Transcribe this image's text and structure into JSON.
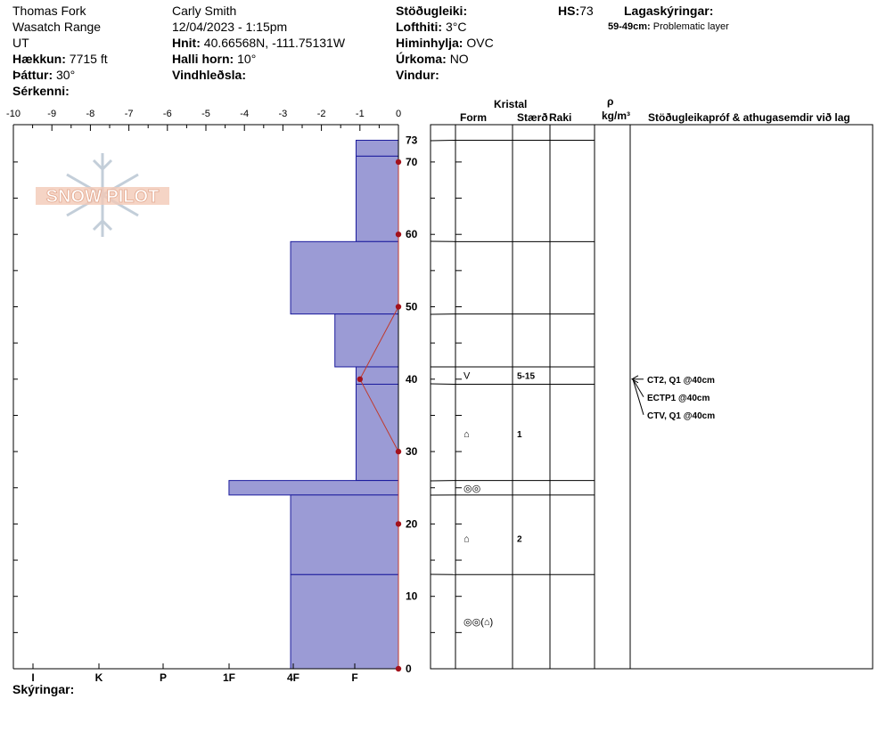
{
  "header": {
    "location": "Thomas Fork",
    "range": "Wasatch Range",
    "state": "UT",
    "elevation_label": "Hækkun:",
    "elevation": "7715 ft",
    "aspect_label": "Þáttur:",
    "aspect": "30°",
    "features_label": "Sérkenni:",
    "features": "",
    "observer": "Carly Smith",
    "datetime": "12/04/2023 - 1:15pm",
    "coords_label": "Hnit:",
    "coords": "40.66568N, -111.75131W",
    "slope_label": "Halli horn:",
    "slope": "10°",
    "wind_loading_label": "Vindhleðsla:",
    "wind_loading": "",
    "stability_label": "Stöðugleiki:",
    "stability": "",
    "airtemp_label": "Lofthiti:",
    "airtemp": "3°C",
    "sky_label": "Himinhylja:",
    "sky": "OVC",
    "precip_label": "Úrkoma:",
    "precip": "NO",
    "wind_label": "Vindur:",
    "wind": "",
    "hs_label": "HS:",
    "hs": "73",
    "layer_notes_label": "Lagaskýringar:",
    "layer_note_range": "59-49cm:",
    "layer_note_text": "Problematic layer"
  },
  "footer": {
    "notes_label": "Skýringar:"
  },
  "columns": {
    "crystal": "Kristal",
    "form": "Form",
    "size": "Stærð",
    "moisture": "Raki",
    "rho": "ρ",
    "density_unit": "kg/m³",
    "tests": "Stöðugleikapróf & athugasemdir við lag"
  },
  "watermark": "SNOW PILOT",
  "chart_data": {
    "type": "snow-profile",
    "temp_axis": {
      "ticks": [
        -10,
        -9,
        -8,
        -7,
        -6,
        -5,
        -4,
        -3,
        -2,
        -1,
        0
      ],
      "range": [
        -10,
        0
      ]
    },
    "hardness_axis": {
      "labels": [
        "I",
        "K",
        "P",
        "1F",
        "4F",
        "F"
      ]
    },
    "depth_axis": {
      "range": [
        0,
        73
      ],
      "ticks": [
        0,
        10,
        20,
        30,
        40,
        50,
        60,
        70,
        73
      ]
    },
    "hardness_layers": [
      {
        "bottom": 70.8,
        "top": 73,
        "temp_scale_edge": -1.1
      },
      {
        "bottom": 59,
        "top": 70.8,
        "temp_scale_edge": -1.1
      },
      {
        "bottom": 49,
        "top": 59,
        "temp_scale_edge": -2.8
      },
      {
        "bottom": 41.7,
        "top": 49,
        "temp_scale_edge": -1.65
      },
      {
        "bottom": 39.3,
        "top": 41.7,
        "temp_scale_edge": -1.1
      },
      {
        "bottom": 26,
        "top": 39.3,
        "temp_scale_edge": -1.1
      },
      {
        "bottom": 24,
        "top": 26,
        "temp_scale_edge": -4.4
      },
      {
        "bottom": 13,
        "top": 24,
        "temp_scale_edge": -2.8
      },
      {
        "bottom": 0,
        "top": 13,
        "temp_scale_edge": -2.8
      }
    ],
    "temperature_profile": [
      {
        "depth": 70,
        "temp": 0
      },
      {
        "depth": 60,
        "temp": 0
      },
      {
        "depth": 50,
        "temp": 0
      },
      {
        "depth": 40,
        "temp": -1
      },
      {
        "depth": 30,
        "temp": 0
      },
      {
        "depth": 20,
        "temp": 0
      },
      {
        "depth": 0,
        "temp": 0
      }
    ],
    "layer_boundaries": [
      73,
      59,
      49,
      41.7,
      39.3,
      26,
      24,
      13,
      0
    ],
    "crystal_rows": [
      {
        "depth": 40.5,
        "form": "V",
        "size": "5-15"
      },
      {
        "depth": 32.5,
        "form": "⌂",
        "size": "1"
      },
      {
        "depth": 25,
        "form": "◎◎",
        "size": ""
      },
      {
        "depth": 18,
        "form": "⌂",
        "size": "2"
      },
      {
        "depth": 6.5,
        "form": "◎◎(⌂)",
        "size": ""
      }
    ],
    "stability_tests": [
      "CT2, Q1 @40cm",
      "ECTP1 @40cm",
      "CTV, Q1 @40cm"
    ]
  }
}
